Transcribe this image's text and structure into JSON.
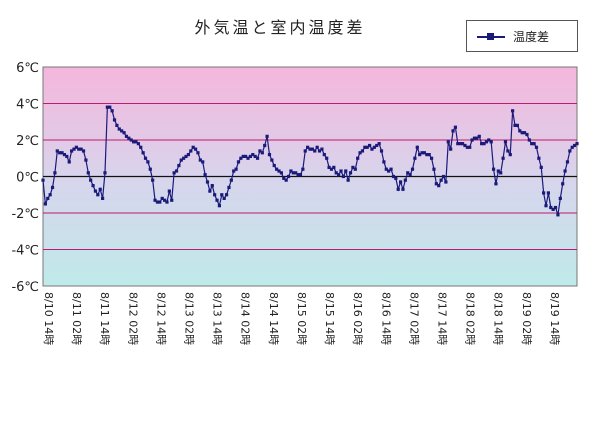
{
  "chart_data": {
    "type": "line",
    "title": "外気温と室内温度差",
    "series": [
      {
        "name": "温度差",
        "values": [
          -0.2,
          -1.5,
          -1.2,
          -1.0,
          -0.6,
          0.2,
          1.4,
          1.3,
          1.3,
          1.2,
          1.1,
          0.8,
          1.4,
          1.5,
          1.6,
          1.5,
          1.5,
          1.4,
          0.9,
          0.2,
          -0.2,
          -0.5,
          -0.8,
          -1.0,
          -0.7,
          -1.2,
          0.2,
          3.8,
          3.8,
          3.6,
          3.1,
          2.8,
          2.6,
          2.5,
          2.4,
          2.2,
          2.1,
          2.0,
          1.9,
          1.9,
          1.8,
          1.6,
          1.3,
          1.0,
          0.8,
          0.4,
          -0.2,
          -1.3,
          -1.4,
          -1.4,
          -1.2,
          -1.3,
          -1.4,
          -0.8,
          -1.3,
          0.2,
          0.3,
          0.6,
          0.9,
          1.0,
          1.1,
          1.2,
          1.4,
          1.6,
          1.5,
          1.3,
          0.9,
          0.8,
          0.1,
          -0.3,
          -0.8,
          -0.5,
          -1.0,
          -1.3,
          -1.6,
          -1.0,
          -1.2,
          -1.0,
          -0.6,
          -0.2,
          0.3,
          0.4,
          0.8,
          1.0,
          1.1,
          1.1,
          1.0,
          1.1,
          1.2,
          1.1,
          1.0,
          1.4,
          1.3,
          1.7,
          2.2,
          1.2,
          0.9,
          0.6,
          0.4,
          0.3,
          0.2,
          -0.1,
          -0.2,
          0.0,
          0.3,
          0.2,
          0.2,
          0.1,
          0.1,
          0.4,
          1.4,
          1.6,
          1.5,
          1.5,
          1.4,
          1.6,
          1.4,
          1.5,
          1.2,
          1.0,
          0.5,
          0.4,
          0.5,
          0.2,
          0.1,
          0.3,
          0.0,
          0.3,
          -0.2,
          0.2,
          0.5,
          0.4,
          1.0,
          1.3,
          1.4,
          1.6,
          1.6,
          1.7,
          1.5,
          1.6,
          1.7,
          1.8,
          1.4,
          0.8,
          0.4,
          0.3,
          0.4,
          0.0,
          -0.1,
          -0.7,
          -0.3,
          -0.7,
          -0.2,
          0.2,
          0.1,
          0.4,
          1.0,
          1.6,
          1.2,
          1.3,
          1.3,
          1.2,
          1.2,
          1.0,
          0.4,
          -0.4,
          -0.5,
          -0.2,
          0.0,
          -0.3,
          1.9,
          1.5,
          2.5,
          2.7,
          1.8,
          1.8,
          1.8,
          1.7,
          1.6,
          1.6,
          2.0,
          2.1,
          2.1,
          2.2,
          1.8,
          1.8,
          1.9,
          2.0,
          1.9,
          0.4,
          -0.4,
          0.3,
          0.2,
          1.0,
          1.9,
          1.4,
          1.2,
          3.6,
          2.8,
          2.8,
          2.5,
          2.4,
          2.4,
          2.3,
          2.0,
          1.8,
          1.8,
          1.6,
          1.0,
          0.5,
          -0.9,
          -1.6,
          -0.9,
          -1.7,
          -1.8,
          -1.7,
          -2.1,
          -1.2,
          -0.4,
          0.3,
          0.8,
          1.4,
          1.6,
          1.7,
          1.8
        ]
      }
    ],
    "x_labels": [
      "8/10 14時",
      "8/11 02時",
      "8/11 14時",
      "8/12 02時",
      "8/12 14時",
      "8/13 02時",
      "8/13 14時",
      "8/14 02時",
      "8/14 14時",
      "8/15 02時",
      "8/15 14時",
      "8/16 02時",
      "8/16 14時",
      "8/17 02時",
      "8/17 14時",
      "8/18 02時",
      "8/18 14時",
      "8/19 02時",
      "8/19 14時"
    ],
    "y_ticks": [
      "6℃",
      "4℃",
      "2℃",
      "0℃",
      "-2℃",
      "-4℃",
      "-6℃"
    ],
    "ylim": [
      -6,
      6
    ],
    "grid": true,
    "legend_position": "top-right",
    "colors": {
      "line": "#1a1a7a",
      "bg_top": "#f5b6dc",
      "bg_mid": "#d8d4ec",
      "bg_bottom": "#bfeaea",
      "grid": "#c0196e"
    }
  }
}
